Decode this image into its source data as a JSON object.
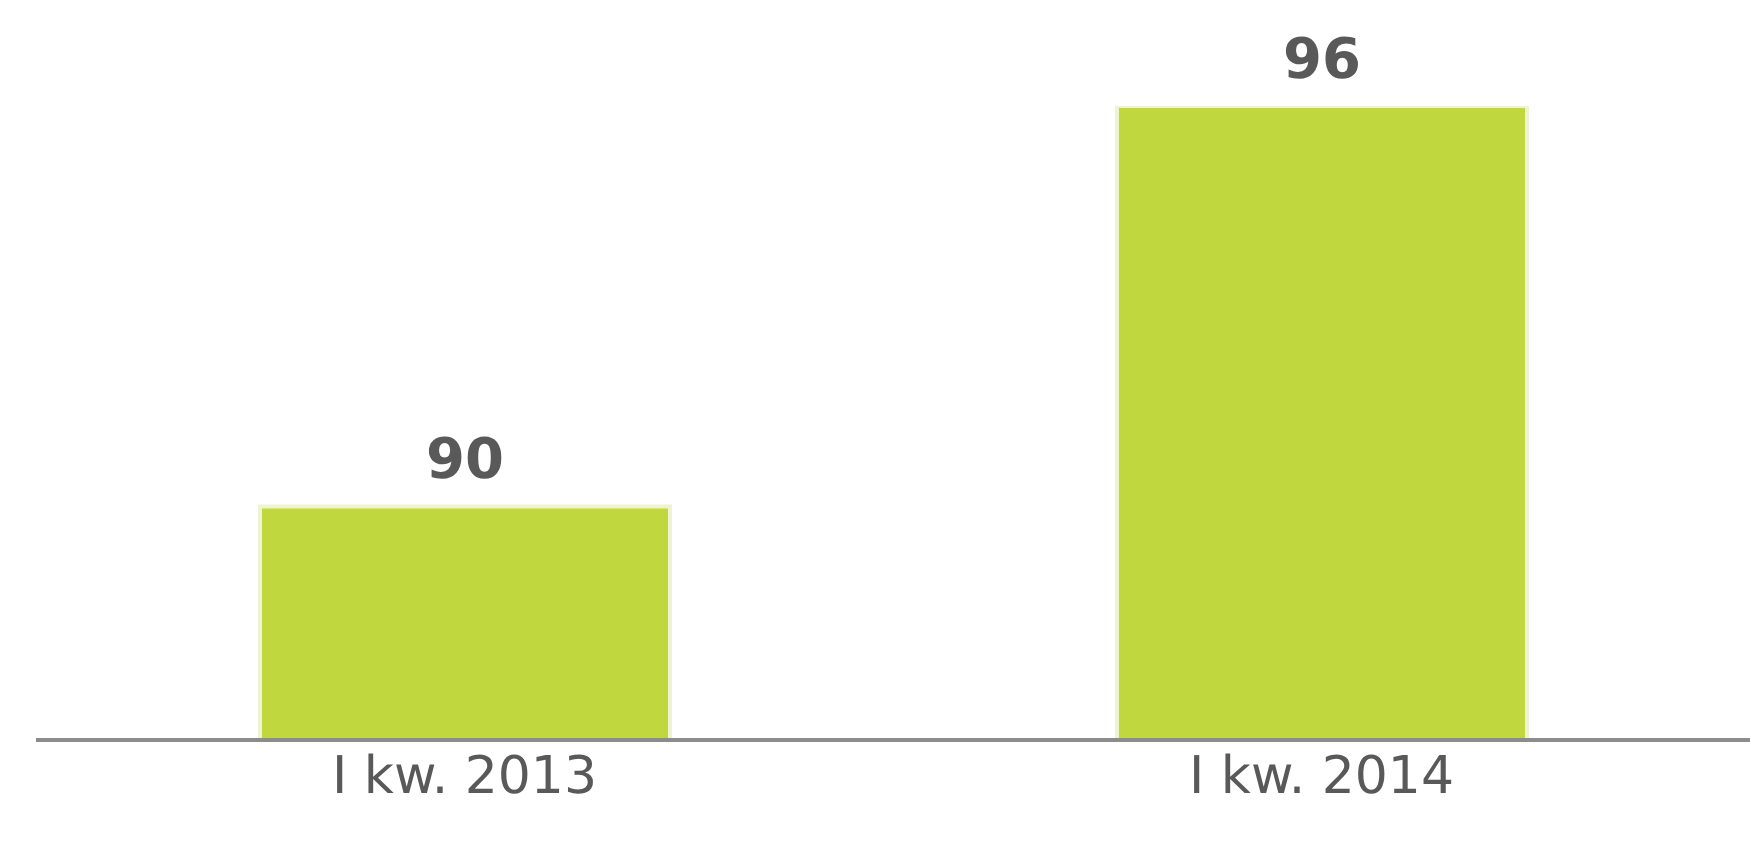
{
  "chart_data": {
    "type": "bar",
    "categories": [
      "I kw. 2013",
      "I kw. 2014"
    ],
    "values": [
      90,
      96
    ],
    "color": "#c0d73d",
    "ylim": [
      86.5,
      96
    ],
    "data_labels": true,
    "grid": false,
    "legend": false
  }
}
